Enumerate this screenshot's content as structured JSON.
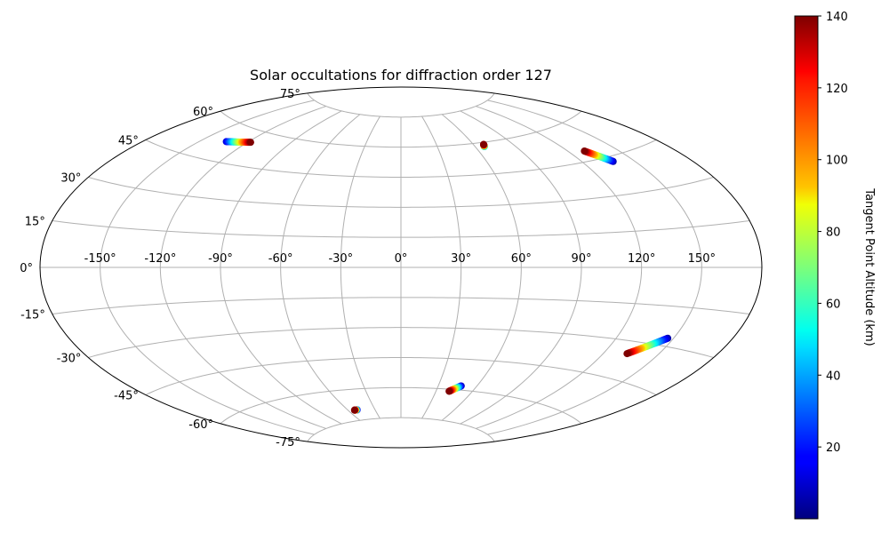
{
  "chart_data": {
    "type": "scatter",
    "projection": "aitoff",
    "title": "Solar occultations for diffraction order 127",
    "xlabel": "",
    "ylabel": "",
    "grid": true,
    "xlim": [
      -180,
      180
    ],
    "ylim": [
      -90,
      90
    ],
    "x_ticks": [
      -150,
      -120,
      -90,
      -60,
      -30,
      0,
      30,
      60,
      90,
      120,
      150
    ],
    "x_tick_labels": [
      "-150°",
      "-120°",
      "-90°",
      "-60°",
      "-30°",
      "0°",
      "30°",
      "60°",
      "90°",
      "120°",
      "150°"
    ],
    "y_ticks": [
      -75,
      -60,
      -45,
      -30,
      -15,
      0,
      15,
      30,
      45,
      60,
      75
    ],
    "y_tick_labels": [
      "-75°",
      "-60°",
      "-45°",
      "-30°",
      "-15°",
      "0°",
      "15°",
      "30°",
      "45°",
      "60°",
      "75°"
    ],
    "colorbar": {
      "label": "Tangent Point Altitude (km)",
      "range": [
        0,
        140
      ],
      "ticks": [
        20,
        40,
        60,
        80,
        100,
        120,
        140
      ],
      "tick_labels": [
        "20",
        "40",
        "60",
        "80",
        "100",
        "120",
        "140"
      ],
      "colormap": "jet"
    },
    "tracks": [
      {
        "lon_start": -134,
        "lat_start": 53,
        "lon_end": -118,
        "lat_end": 55,
        "alt_start": 10,
        "alt_end": 140
      },
      {
        "lon_start": 67,
        "lat_start": 58,
        "lon_end": 68,
        "lat_end": 59,
        "alt_start": 40,
        "alt_end": 140
      },
      {
        "lon_start": 138,
        "lat_start": 43,
        "lon_end": 130,
        "lat_end": 49,
        "alt_start": 5,
        "alt_end": 140
      },
      {
        "lon_start": 147,
        "lat_start": -27,
        "lon_end": 133,
        "lat_end": -35,
        "alt_start": 5,
        "alt_end": 140
      },
      {
        "lon_start": 48,
        "lat_start": -58,
        "lon_end": 41,
        "lat_end": -61,
        "alt_start": 5,
        "alt_end": 140
      },
      {
        "lon_start": -50,
        "lat_start": -70,
        "lon_end": -53,
        "lat_end": -70,
        "alt_start": 5,
        "alt_end": 140
      }
    ]
  }
}
